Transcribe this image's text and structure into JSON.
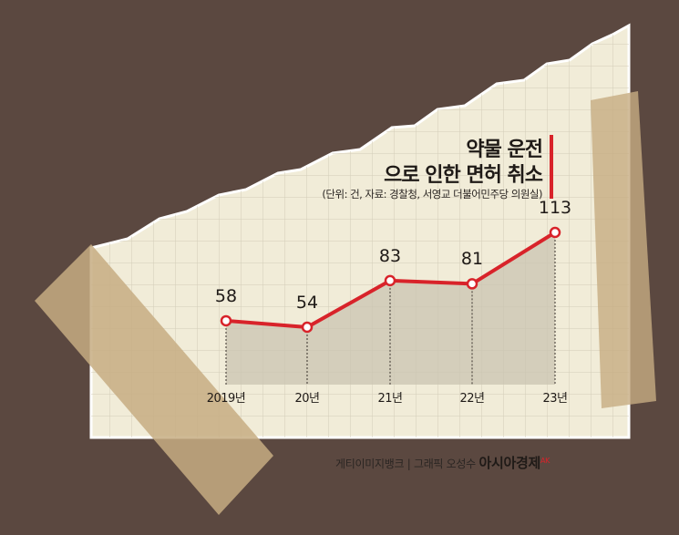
{
  "chart_data": {
    "type": "area",
    "title_line1": "약물 운전",
    "title_line2": "으로 인한 면허 취소",
    "subtitle": "(단위: 건, 자료: 경찰청, 서영교 더불어민주당 의원실)",
    "categories": [
      "2019년",
      "20년",
      "21년",
      "22년",
      "23년"
    ],
    "values": [
      58,
      54,
      83,
      81,
      113
    ],
    "data_labels": [
      "58",
      "54",
      "83",
      "81",
      "113"
    ],
    "line_color": "#d8232a",
    "area_color": "#c9c4b2",
    "grid": true
  },
  "credit": {
    "text": "게티이미지뱅크 | 그래픽 오성수",
    "brand": "아시아경제",
    "brand_sup": "AK"
  },
  "colors": {
    "background": "#5b4840",
    "paper": "#f3efdc",
    "grid": "#d9d4c1",
    "tape": "#c8b28a"
  }
}
